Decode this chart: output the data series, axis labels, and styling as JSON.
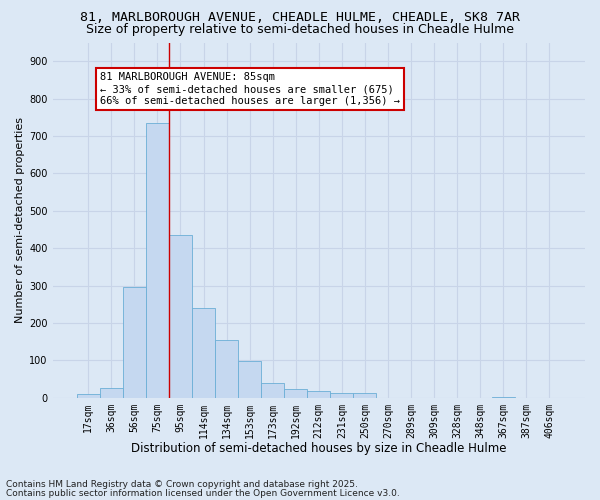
{
  "title1": "81, MARLBOROUGH AVENUE, CHEADLE HULME, CHEADLE, SK8 7AR",
  "title2": "Size of property relative to semi-detached houses in Cheadle Hulme",
  "xlabel": "Distribution of semi-detached houses by size in Cheadle Hulme",
  "ylabel": "Number of semi-detached properties",
  "categories": [
    "17sqm",
    "36sqm",
    "56sqm",
    "75sqm",
    "95sqm",
    "114sqm",
    "134sqm",
    "153sqm",
    "173sqm",
    "192sqm",
    "212sqm",
    "231sqm",
    "250sqm",
    "270sqm",
    "289sqm",
    "309sqm",
    "328sqm",
    "348sqm",
    "367sqm",
    "387sqm",
    "406sqm"
  ],
  "values": [
    10,
    25,
    295,
    735,
    435,
    240,
    155,
    97,
    40,
    22,
    17,
    12,
    12,
    0,
    0,
    0,
    0,
    0,
    3,
    0,
    0
  ],
  "bar_color": "#c5d8f0",
  "bar_edge_color": "#6baed6",
  "grid_color": "#c8d4e8",
  "background_color": "#dce8f5",
  "annotation_line1": "81 MARLBOROUGH AVENUE: 85sqm",
  "annotation_line2": "← 33% of semi-detached houses are smaller (675)",
  "annotation_line3": "66% of semi-detached houses are larger (1,356) →",
  "annotation_box_color": "#ffffff",
  "annotation_box_edge_color": "#cc0000",
  "property_line_color": "#cc0000",
  "footer1": "Contains HM Land Registry data © Crown copyright and database right 2025.",
  "footer2": "Contains public sector information licensed under the Open Government Licence v3.0.",
  "ylim": [
    0,
    950
  ],
  "yticks": [
    0,
    100,
    200,
    300,
    400,
    500,
    600,
    700,
    800,
    900
  ],
  "title1_fontsize": 9.5,
  "title2_fontsize": 9,
  "xlabel_fontsize": 8.5,
  "ylabel_fontsize": 8,
  "tick_fontsize": 7,
  "annotation_fontsize": 7.5,
  "footer_fontsize": 6.5
}
